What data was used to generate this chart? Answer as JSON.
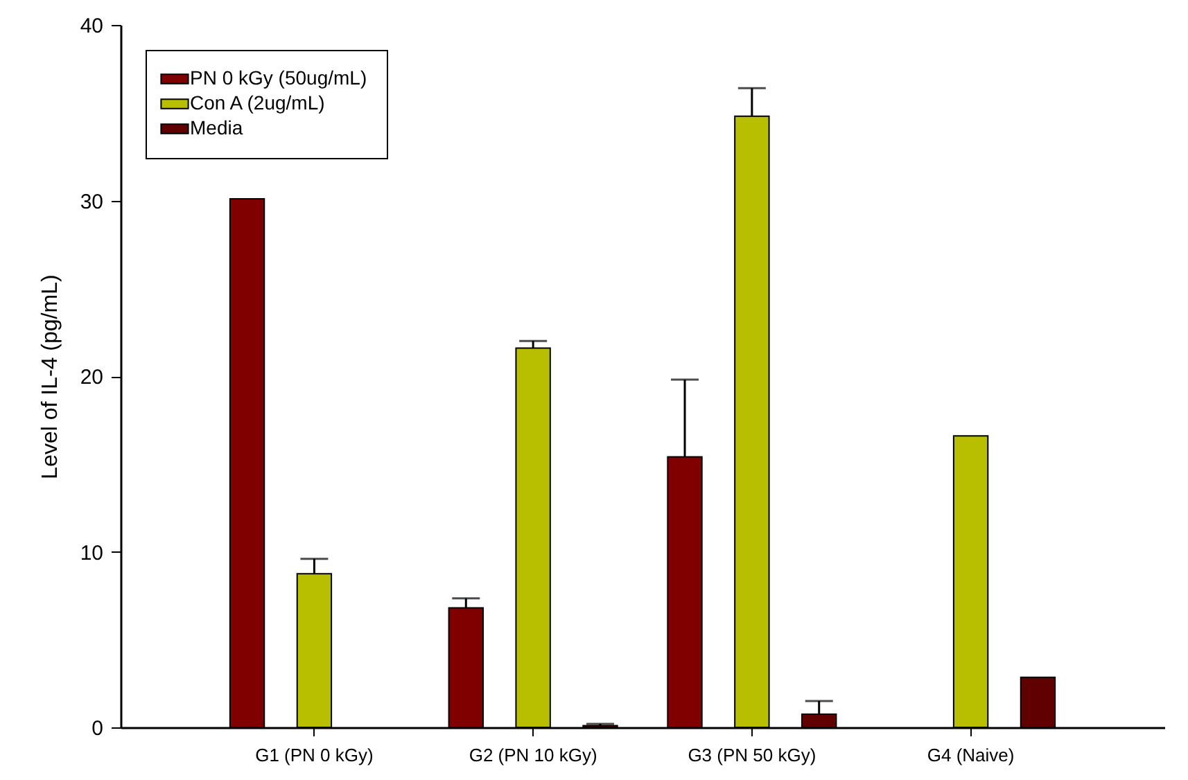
{
  "chart_data": {
    "type": "bar",
    "ylabel": "Level of IL-4 (pg/mL)",
    "categories": [
      "G1 (PN 0 kGy)",
      "G2 (PN 10 kGy)",
      "G3 (PN 50 kGy)",
      "G4 (Naive)"
    ],
    "series": [
      {
        "name": "PN 0 kGy (50ug/mL)",
        "color": "#800000",
        "values": [
          30.1,
          6.8,
          15.4,
          null
        ],
        "errors": [
          null,
          [
            6.8,
            7.35
          ],
          [
            15.4,
            19.8
          ],
          null
        ]
      },
      {
        "name": "Con A (2ug/mL)",
        "color": "#b8bf00",
        "values": [
          8.75,
          21.6,
          34.8,
          16.6
        ],
        "errors": [
          [
            8.75,
            9.6
          ],
          [
            21.6,
            22.0
          ],
          [
            34.8,
            36.4
          ],
          null
        ]
      },
      {
        "name": "Media",
        "color": "#600000",
        "values": [
          null,
          0.1,
          0.75,
          2.85
        ],
        "errors": [
          null,
          [
            0.1,
            0.2
          ],
          [
            0.75,
            1.5
          ],
          null
        ]
      }
    ],
    "ylim": [
      0,
      40
    ],
    "yticks": [
      0,
      10,
      20,
      30,
      40
    ],
    "grid": false,
    "legend": "top left"
  }
}
